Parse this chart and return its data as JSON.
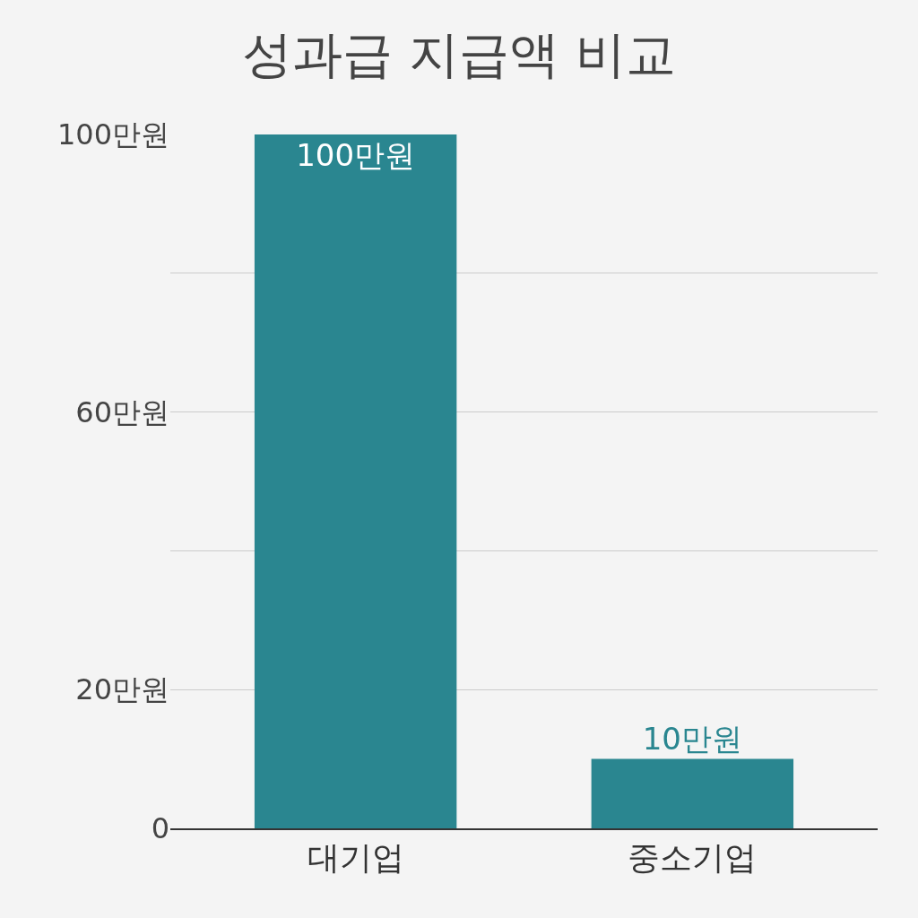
{
  "chart_data": {
    "type": "bar",
    "title": "성과급 지급액 비교",
    "categories": [
      "대기업",
      "중소기업"
    ],
    "values": [
      100,
      10
    ],
    "color": "#2a8690",
    "value_labels": [
      "100만원",
      "10만원"
    ],
    "ylim": [
      0,
      100
    ],
    "yticks": [
      0,
      {
        "value": 20,
        "label": "20만원"
      },
      {
        "value": 40,
        "label": null
      },
      {
        "value": 60,
        "label": "60만원"
      },
      {
        "value": 80,
        "label": null
      },
      {
        "value": 100,
        "label": "100만원"
      }
    ],
    "grid": "y"
  }
}
